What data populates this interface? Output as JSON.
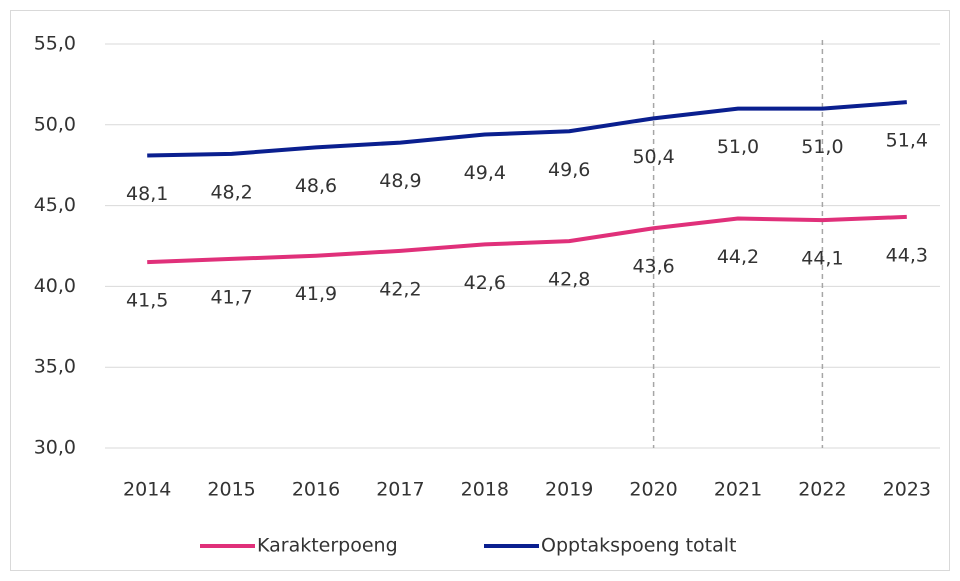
{
  "chart_data": {
    "type": "line",
    "categories": [
      "2014",
      "2015",
      "2016",
      "2017",
      "2018",
      "2019",
      "2020",
      "2021",
      "2022",
      "2023"
    ],
    "series": [
      {
        "name": "Karakterpoeng",
        "color": "#e0307a",
        "values": [
          41.5,
          41.7,
          41.9,
          42.2,
          42.6,
          42.8,
          43.6,
          44.2,
          44.1,
          44.3
        ],
        "value_labels": [
          "41,5",
          "41,7",
          "41,9",
          "42,2",
          "42,6",
          "42,8",
          "43,6",
          "44,2",
          "44,1",
          "44,3"
        ]
      },
      {
        "name": "Opptakspoeng totalt",
        "color": "#0a1f8f",
        "values": [
          48.1,
          48.2,
          48.6,
          48.9,
          49.4,
          49.6,
          50.4,
          51.0,
          51.0,
          51.4
        ],
        "value_labels": [
          "48,1",
          "48,2",
          "48,6",
          "48,9",
          "49,4",
          "49,6",
          "50,4",
          "51,0",
          "51,0",
          "51,4"
        ]
      }
    ],
    "ylim": [
      30,
      55
    ],
    "yticks": [
      {
        "value": 30,
        "label": "30,0"
      },
      {
        "value": 35,
        "label": "35,0"
      },
      {
        "value": 40,
        "label": "40,0"
      },
      {
        "value": 45,
        "label": "45,0"
      },
      {
        "value": 50,
        "label": "50,0"
      },
      {
        "value": 55,
        "label": "55,0"
      }
    ],
    "grid": true,
    "legend": "bottom"
  }
}
